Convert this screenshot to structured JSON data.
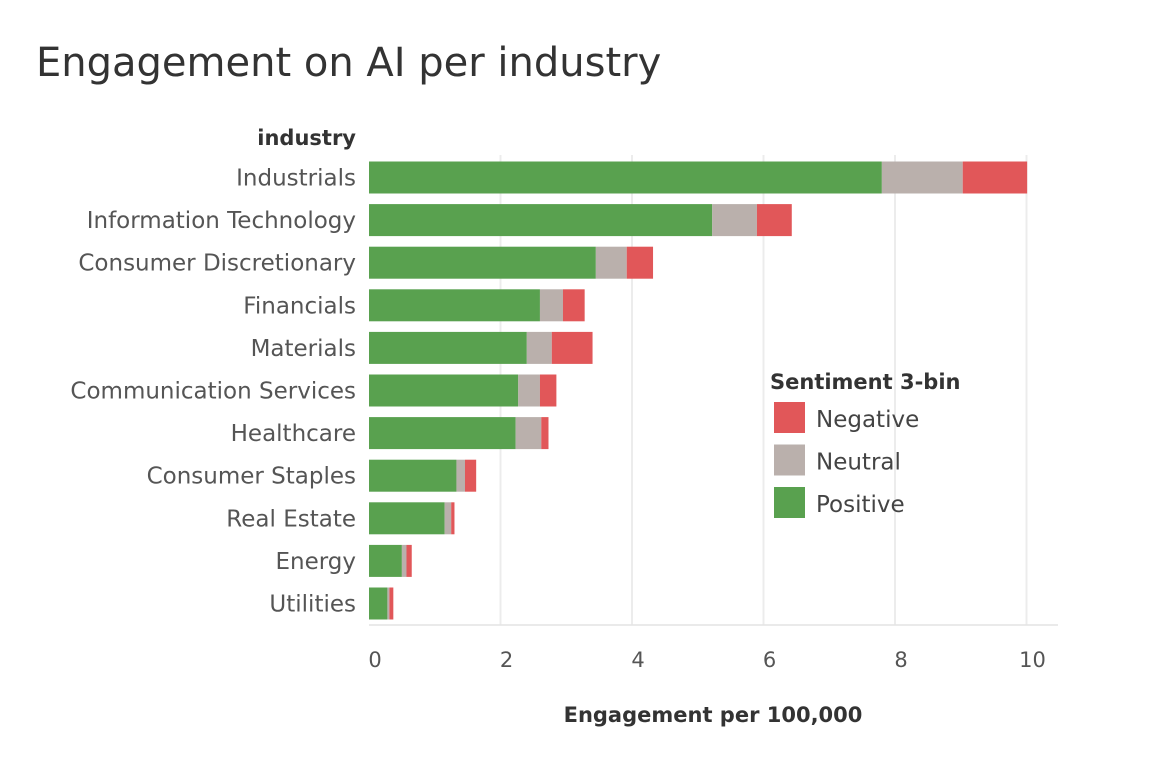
{
  "chart_data": {
    "type": "bar",
    "orientation": "horizontal",
    "stacked": true,
    "title": "Engagement on AI per industry",
    "ylabel": "industry",
    "xlabel": "Engagement per 100,000",
    "xlim": [
      0,
      10
    ],
    "xticks": [
      "0",
      "2",
      "4",
      "6",
      "8",
      "10"
    ],
    "grid": true,
    "legend_position": "right",
    "categories": [
      "Industrials",
      "Information Technology",
      "Consumer Discretionary",
      "Financials",
      "Materials",
      "Communication Services",
      "Healthcare",
      "Consumer Staples",
      "Real Estate",
      "Energy",
      "Utilities"
    ],
    "series": [
      {
        "name": "Positive",
        "color": "#59a14f",
        "values": [
          7.8,
          5.22,
          3.45,
          2.6,
          2.4,
          2.27,
          2.23,
          1.33,
          1.15,
          0.5,
          0.28
        ]
      },
      {
        "name": "Neutral",
        "color": "#bab0ac",
        "values": [
          1.23,
          0.68,
          0.47,
          0.35,
          0.38,
          0.33,
          0.39,
          0.13,
          0.1,
          0.07,
          0.03
        ]
      },
      {
        "name": "Negative",
        "color": "#e15759",
        "values": [
          0.98,
          0.53,
          0.4,
          0.33,
          0.62,
          0.25,
          0.11,
          0.17,
          0.05,
          0.08,
          0.06
        ]
      }
    ],
    "legend": {
      "title": "Sentiment 3-bin",
      "entries": [
        {
          "label": "Negative",
          "color": "#e15759"
        },
        {
          "label": "Neutral",
          "color": "#bab0ac"
        },
        {
          "label": "Positive",
          "color": "#59a14f"
        }
      ]
    }
  }
}
